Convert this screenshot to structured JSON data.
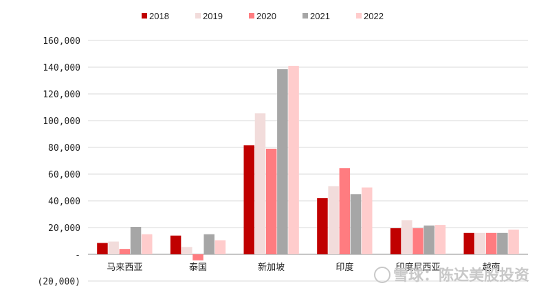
{
  "chart_data": {
    "type": "bar",
    "title": "",
    "xlabel": "",
    "ylabel": "",
    "categories": [
      "马来西亚",
      "泰国",
      "新加坡",
      "印度",
      "印度尼西亚",
      "越南"
    ],
    "series": [
      {
        "name": "2018",
        "color": "#c00000",
        "values": [
          8500,
          14000,
          81500,
          42000,
          19500,
          16000
        ]
      },
      {
        "name": "2019",
        "color": "#f2dcdb",
        "values": [
          9500,
          5500,
          105500,
          51000,
          25500,
          16000
        ]
      },
      {
        "name": "2020",
        "color": "#ff7c80",
        "values": [
          4000,
          -4500,
          79000,
          64500,
          19500,
          16000
        ]
      },
      {
        "name": "2021",
        "color": "#a6a6a6",
        "values": [
          20500,
          15000,
          138500,
          45000,
          21500,
          16000
        ]
      },
      {
        "name": "2022",
        "color": "#ffcccc",
        "values": [
          15000,
          10500,
          141000,
          50000,
          22000,
          18500
        ]
      }
    ],
    "ylim": [
      -20000,
      160000
    ],
    "yticks": [
      -20000,
      0,
      20000,
      40000,
      60000,
      80000,
      100000,
      120000,
      140000,
      160000
    ],
    "ytick_labels": [
      "(20,000)",
      "-",
      "20,000",
      "40,000",
      "60,000",
      "80,000",
      "100,000",
      "120,000",
      "140,000",
      "160,000"
    ],
    "grid": true,
    "legend": "top"
  },
  "watermark": "雪球：陈达美股投资"
}
